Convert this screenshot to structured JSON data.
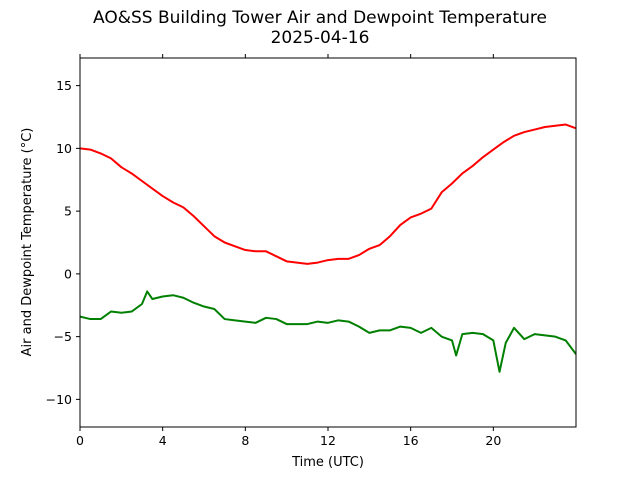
{
  "chart_data": {
    "type": "line",
    "title": "AO&SS Building Tower Air and Dewpoint Temperature",
    "subtitle": "2025-04-16",
    "xlabel": "Time (UTC)",
    "ylabel": "Air and Dewpoint Temperature (°C)",
    "xlim": [
      0,
      24
    ],
    "ylim": [
      -12.2,
      17.2
    ],
    "x_ticks": [
      0,
      4,
      8,
      12,
      16,
      20
    ],
    "y_ticks": [
      -10,
      -5,
      0,
      5,
      10,
      15
    ],
    "grid": false,
    "legend": "none",
    "series": [
      {
        "color": "#ff0000",
        "x": [
          0,
          0.5,
          1,
          1.5,
          2,
          2.5,
          3,
          3.5,
          4,
          4.5,
          5,
          5.5,
          6,
          6.5,
          7,
          7.5,
          8,
          8.5,
          9,
          9.5,
          10,
          10.5,
          11,
          11.5,
          12,
          12.5,
          13,
          13.5,
          14,
          14.5,
          15,
          15.5,
          16,
          16.5,
          17,
          17.5,
          18,
          18.5,
          19,
          19.5,
          20,
          20.5,
          21,
          21.5,
          22,
          22.5,
          23,
          23.5,
          24
        ],
        "values": [
          10.0,
          9.9,
          9.6,
          9.2,
          8.5,
          8.0,
          7.4,
          6.8,
          6.2,
          5.7,
          5.3,
          4.6,
          3.8,
          3.0,
          2.5,
          2.2,
          1.9,
          1.8,
          1.8,
          1.4,
          1.0,
          0.9,
          0.8,
          0.9,
          1.1,
          1.2,
          1.2,
          1.5,
          2.0,
          2.3,
          3.0,
          3.9,
          4.5,
          4.8,
          5.2,
          6.5,
          7.2,
          8.0,
          8.6,
          9.3,
          9.9,
          10.5,
          11.0,
          11.3,
          11.5,
          11.7,
          11.8,
          11.9,
          11.6
        ]
      },
      {
        "color": "#008000",
        "x": [
          0,
          0.5,
          1,
          1.5,
          2,
          2.5,
          3,
          3.25,
          3.5,
          4,
          4.5,
          5,
          5.5,
          6,
          6.5,
          7,
          7.5,
          8,
          8.5,
          9,
          9.5,
          10,
          10.5,
          11,
          11.5,
          12,
          12.5,
          13,
          13.5,
          14,
          14.5,
          15,
          15.5,
          16,
          16.5,
          17,
          17.5,
          18,
          18.2,
          18.5,
          19,
          19.5,
          20,
          20.3,
          20.6,
          21,
          21.5,
          22,
          22.5,
          23,
          23.5,
          24
        ],
        "values": [
          -3.4,
          -3.6,
          -3.6,
          -3.0,
          -3.1,
          -3.0,
          -2.4,
          -1.4,
          -2.0,
          -1.8,
          -1.7,
          -1.9,
          -2.3,
          -2.6,
          -2.8,
          -3.6,
          -3.7,
          -3.8,
          -3.9,
          -3.5,
          -3.6,
          -4.0,
          -4.0,
          -4.0,
          -3.8,
          -3.9,
          -3.7,
          -3.8,
          -4.2,
          -4.7,
          -4.5,
          -4.5,
          -4.2,
          -4.3,
          -4.7,
          -4.3,
          -5.0,
          -5.3,
          -6.5,
          -4.8,
          -4.7,
          -4.8,
          -5.3,
          -7.8,
          -5.5,
          -4.3,
          -5.2,
          -4.8,
          -4.9,
          -5.0,
          -5.3,
          -6.4
        ]
      }
    ]
  }
}
